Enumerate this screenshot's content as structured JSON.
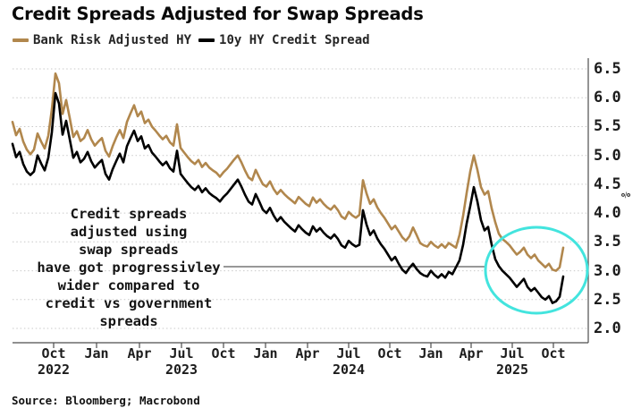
{
  "title": "Credit Spreads Adjusted for Swap Spreads",
  "legend": [
    {
      "label": "Bank Risk Adjusted HY",
      "color": "#B1874D"
    },
    {
      "label": "10y HY Credit Spread",
      "color": "#000000"
    }
  ],
  "annotation": {
    "lines": [
      "Credit spreads",
      "adjusted using",
      "swap spreads",
      "have got progressivley",
      "wider compared to",
      "credit vs government",
      "spreads"
    ]
  },
  "highlight": {
    "shape": "ellipse",
    "color": "#43E4DE"
  },
  "source": "Source: Bloomberg; Macrobond",
  "axes": {
    "unit": "%",
    "y_ticks": [
      "6.5",
      "6.0",
      "5.5",
      "5.0",
      "4.5",
      "4.0",
      "3.5",
      "3.0",
      "2.5",
      "2.0"
    ],
    "x_ticks": [
      {
        "label": "Oct",
        "year": "2022"
      },
      {
        "label": "Jan"
      },
      {
        "label": "Apr"
      },
      {
        "label": "Jul",
        "year": "2023"
      },
      {
        "label": "Oct"
      },
      {
        "label": "Jan"
      },
      {
        "label": "Apr"
      },
      {
        "label": "Jul",
        "year": "2024"
      },
      {
        "label": "Oct"
      },
      {
        "label": "Jan"
      },
      {
        "label": "Apr"
      },
      {
        "label": "Jul",
        "year": "2025"
      },
      {
        "label": "Oct"
      }
    ]
  },
  "chart_data": {
    "type": "line",
    "title": "Credit Spreads Adjusted for Swap Spreads",
    "ylabel": "%",
    "ylim": [
      2.0,
      6.5
    ],
    "grid": "horizontal-dotted",
    "legend_position": "top-left",
    "x_range": [
      "Jul 2022",
      "Oct 2025"
    ],
    "x_frequency": "approx weekly",
    "series": [
      {
        "name": "Bank Risk Adjusted HY",
        "color": "#B1874D",
        "values": [
          5.58,
          5.35,
          5.46,
          5.24,
          5.1,
          5.02,
          5.1,
          5.38,
          5.24,
          5.12,
          5.34,
          5.8,
          6.42,
          6.25,
          5.72,
          5.96,
          5.65,
          5.32,
          5.42,
          5.25,
          5.3,
          5.44,
          5.28,
          5.17,
          5.24,
          5.3,
          5.08,
          4.98,
          5.16,
          5.31,
          5.44,
          5.3,
          5.58,
          5.73,
          5.87,
          5.68,
          5.76,
          5.56,
          5.62,
          5.5,
          5.43,
          5.35,
          5.28,
          5.34,
          5.23,
          5.17,
          5.54,
          5.13,
          5.05,
          4.97,
          4.9,
          4.85,
          4.92,
          4.8,
          4.87,
          4.79,
          4.74,
          4.7,
          4.63,
          4.71,
          4.77,
          4.85,
          4.93,
          5.0,
          4.88,
          4.74,
          4.62,
          4.57,
          4.75,
          4.62,
          4.5,
          4.46,
          4.55,
          4.42,
          4.33,
          4.4,
          4.33,
          4.27,
          4.22,
          4.17,
          4.28,
          4.22,
          4.16,
          4.12,
          4.27,
          4.18,
          4.24,
          4.16,
          4.1,
          4.06,
          4.13,
          4.05,
          3.94,
          3.9,
          4.02,
          3.96,
          3.92,
          3.97,
          4.57,
          4.34,
          4.16,
          4.24,
          4.1,
          4.0,
          3.92,
          3.82,
          3.72,
          3.78,
          3.68,
          3.58,
          3.52,
          3.6,
          3.75,
          3.62,
          3.48,
          3.44,
          3.42,
          3.5,
          3.44,
          3.4,
          3.46,
          3.4,
          3.48,
          3.44,
          3.4,
          3.62,
          3.95,
          4.35,
          4.72,
          5.0,
          4.75,
          4.45,
          4.32,
          4.38,
          4.08,
          3.84,
          3.64,
          3.55,
          3.5,
          3.44,
          3.36,
          3.28,
          3.33,
          3.4,
          3.28,
          3.22,
          3.28,
          3.18,
          3.12,
          3.06,
          3.12,
          3.02,
          3.0,
          3.06,
          3.4
        ]
      },
      {
        "name": "10y HY Credit Spread",
        "color": "#000000",
        "values": [
          5.2,
          4.97,
          5.06,
          4.85,
          4.72,
          4.66,
          4.72,
          5.0,
          4.86,
          4.74,
          4.96,
          5.4,
          6.08,
          5.9,
          5.36,
          5.6,
          5.28,
          4.96,
          5.06,
          4.88,
          4.94,
          5.06,
          4.9,
          4.79,
          4.86,
          4.92,
          4.68,
          4.58,
          4.76,
          4.9,
          5.03,
          4.88,
          5.16,
          5.3,
          5.43,
          5.25,
          5.33,
          5.12,
          5.18,
          5.05,
          4.98,
          4.9,
          4.83,
          4.89,
          4.78,
          4.72,
          5.08,
          4.68,
          4.6,
          4.52,
          4.45,
          4.4,
          4.47,
          4.36,
          4.43,
          4.35,
          4.3,
          4.26,
          4.2,
          4.28,
          4.34,
          4.42,
          4.5,
          4.58,
          4.46,
          4.32,
          4.2,
          4.15,
          4.33,
          4.2,
          4.06,
          4.0,
          4.09,
          3.96,
          3.86,
          3.93,
          3.85,
          3.79,
          3.73,
          3.68,
          3.79,
          3.72,
          3.66,
          3.62,
          3.77,
          3.68,
          3.74,
          3.66,
          3.6,
          3.56,
          3.63,
          3.55,
          3.44,
          3.4,
          3.52,
          3.46,
          3.42,
          3.45,
          4.05,
          3.8,
          3.62,
          3.7,
          3.56,
          3.46,
          3.38,
          3.28,
          3.18,
          3.24,
          3.12,
          3.02,
          2.96,
          3.05,
          3.12,
          3.03,
          2.96,
          2.92,
          2.9,
          3.0,
          2.93,
          2.88,
          2.94,
          2.88,
          2.98,
          2.94,
          3.06,
          3.18,
          3.45,
          3.82,
          4.12,
          4.45,
          4.2,
          3.88,
          3.7,
          3.76,
          3.45,
          3.2,
          3.08,
          3.0,
          2.94,
          2.88,
          2.8,
          2.72,
          2.79,
          2.86,
          2.72,
          2.65,
          2.7,
          2.62,
          2.54,
          2.5,
          2.56,
          2.44,
          2.47,
          2.55,
          2.9
        ]
      }
    ]
  }
}
